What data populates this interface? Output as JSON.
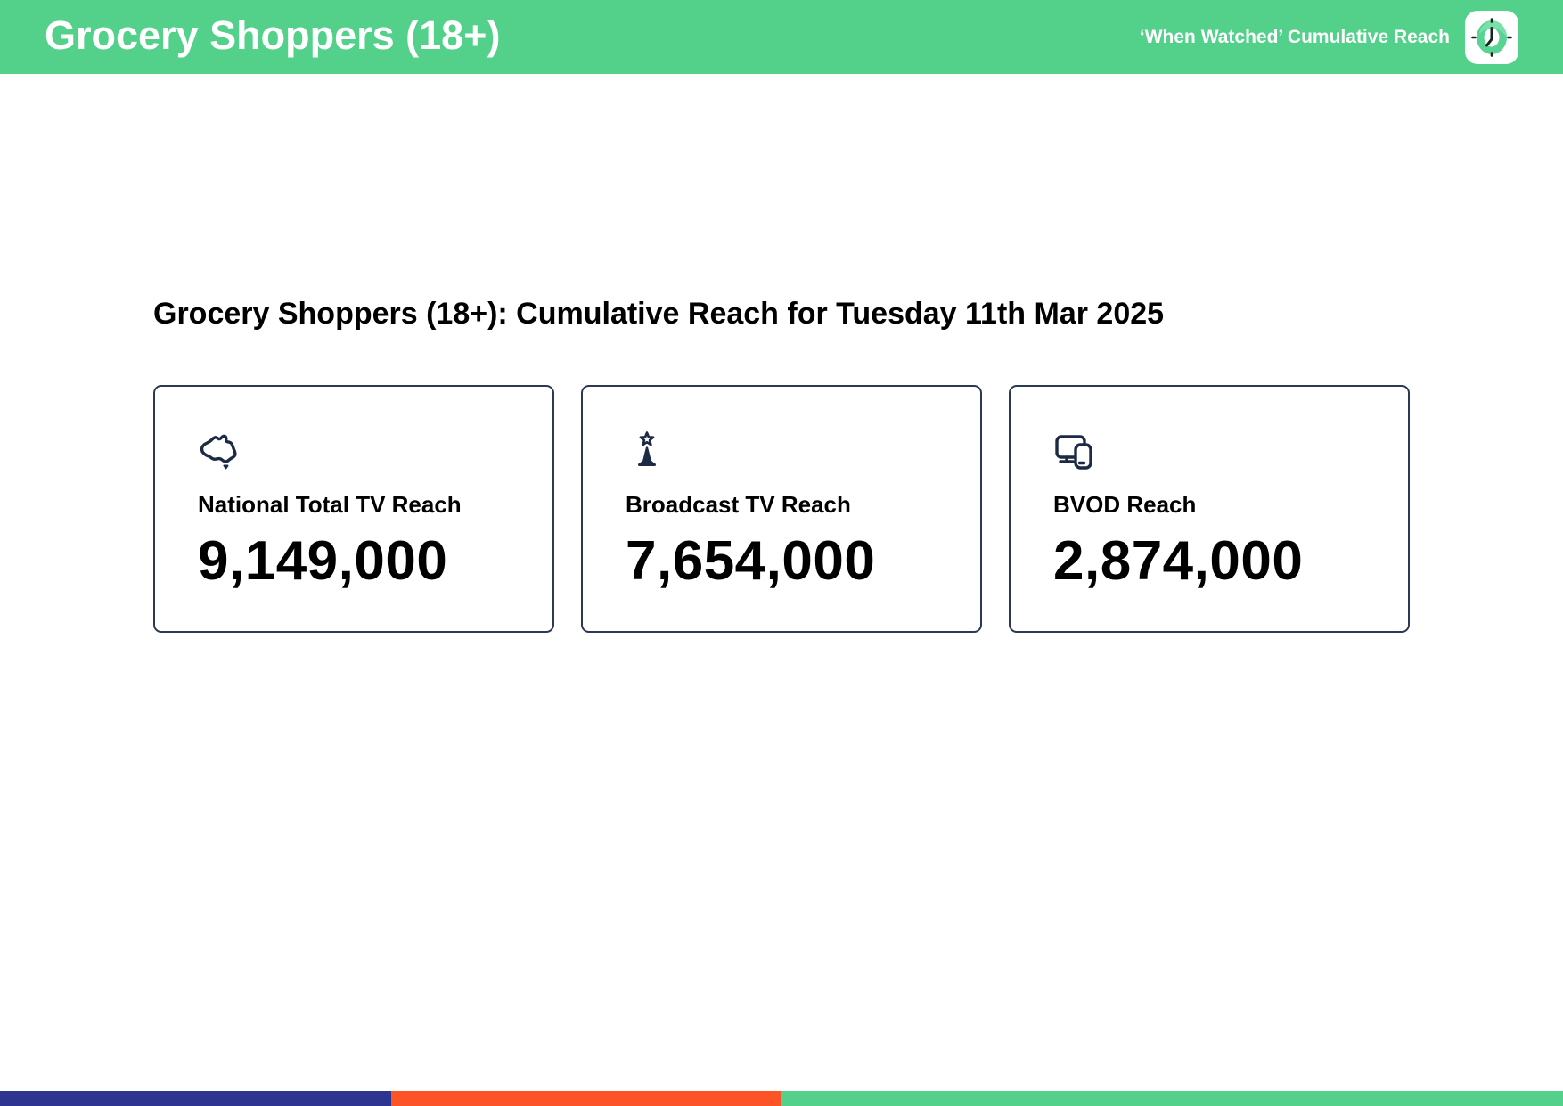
{
  "header": {
    "title": "Grocery Shoppers (18+)",
    "subtitle": "‘When Watched’ Cumulative Reach",
    "logo": "clock-logo"
  },
  "main": {
    "heading": "Grocery Shoppers (18+): Cumulative Reach for Tuesday 11th Mar 2025",
    "cards": [
      {
        "icon": "australia-map-icon",
        "label": "National Total TV Reach",
        "value": "9,149,000"
      },
      {
        "icon": "broadcast-tower-icon",
        "label": "Broadcast TV Reach",
        "value": "7,654,000"
      },
      {
        "icon": "tv-and-phone-icon",
        "label": "BVOD Reach",
        "value": "2,874,000"
      }
    ]
  },
  "footer": {
    "stripe_colors": [
      "#2d3590",
      "#fc5426",
      "#53d18a"
    ],
    "stripe_widths_pct": [
      25,
      25,
      50
    ]
  },
  "colors": {
    "header_green": "#53d18a",
    "logo_green": "#57d492",
    "icon_navy": "#1d2a45",
    "card_border": "#2b3a52",
    "text_black": "#000000",
    "text_white": "#ffffff"
  }
}
